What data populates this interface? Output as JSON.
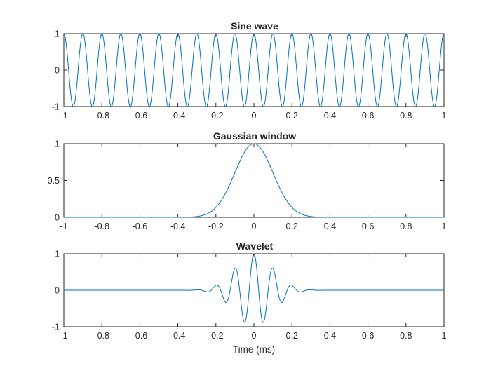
{
  "chart_data": [
    {
      "type": "line",
      "title": "Sine wave",
      "xlabel": "",
      "ylabel": "",
      "xlim": [
        -1,
        1
      ],
      "ylim": [
        -1,
        1
      ],
      "xticks": [
        "-1",
        "-0.8",
        "-0.6",
        "-0.4",
        "-0.2",
        "0",
        "0.2",
        "0.4",
        "0.6",
        "0.8",
        "1"
      ],
      "yticks": [
        "-1",
        "0",
        "1"
      ],
      "grid": false,
      "series": [
        {
          "function": "cos(2*pi*10*t)",
          "frequency_khz": 10,
          "amplitude": 1,
          "color": "#0072BD"
        }
      ]
    },
    {
      "type": "line",
      "title": "Gaussian window",
      "xlabel": "",
      "ylabel": "",
      "xlim": [
        -1,
        1
      ],
      "ylim": [
        0,
        1
      ],
      "xticks": [
        "-1",
        "-0.8",
        "-0.6",
        "-0.4",
        "-0.2",
        "0",
        "0.2",
        "0.4",
        "0.6",
        "0.8",
        "1"
      ],
      "yticks": [
        "0",
        "0.5",
        "1"
      ],
      "grid": false,
      "series": [
        {
          "function": "exp(-t^2/(2*s^2))",
          "sigma_ms": 0.1,
          "peak": 1,
          "color": "#0072BD"
        }
      ]
    },
    {
      "type": "line",
      "title": "Wavelet",
      "xlabel": "Time (ms)",
      "ylabel": "",
      "xlim": [
        -1,
        1
      ],
      "ylim": [
        -1,
        1
      ],
      "xticks": [
        "-1",
        "-0.8",
        "-0.6",
        "-0.4",
        "-0.2",
        "0",
        "0.2",
        "0.4",
        "0.6",
        "0.8",
        "1"
      ],
      "yticks": [
        "-1",
        "0",
        "1"
      ],
      "grid": false,
      "series": [
        {
          "function": "cos(2*pi*10*t)*exp(-t^2/(2*s^2))",
          "frequency_khz": 10,
          "sigma_ms": 0.1,
          "color": "#0072BD"
        }
      ]
    }
  ]
}
